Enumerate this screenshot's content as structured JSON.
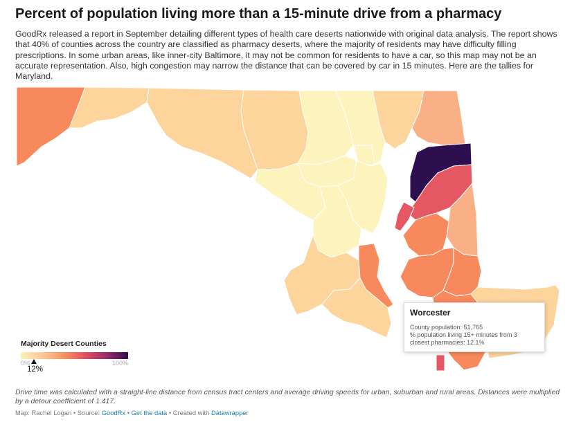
{
  "header": {
    "title": "Percent of population living more than a 15-minute drive from a pharmacy",
    "description": "GoodRx released a report in September detailing different types of health care deserts nationwide with original data analysis. The report shows that 40% of counties across the country are classified as pharmacy deserts, where the majority of residents may have difficulty filling prescriptions. In some urban areas, like inner-city Baltimore, it may not be common for residents to have a car, so this map may not be an accurate representation. Also, high congestion may narrow the distance that can be covered by car in 15 minutes. Here are the tallies for Maryland."
  },
  "colors": {
    "scale": [
      "#fbf1b6",
      "#fcc89a",
      "#f8925f",
      "#e44e5e",
      "#9a2a6c",
      "#2d0f4f"
    ],
    "county_pale": "#fdf3bd",
    "county_light": "#fcd49c",
    "county_mid": "#fab086",
    "county_orange": "#f8895c",
    "county_red": "#e45763",
    "county_darkest": "#2d0f4f",
    "link": "#1d81a2"
  },
  "legend": {
    "title": "Majority Desert Counties",
    "min_label": "0%",
    "max_label": "100%",
    "hover_value_label": "12%",
    "hover_value": 12.1
  },
  "tooltip": {
    "county": "Worcester",
    "population_line": "County population: 51,765",
    "pct_line_1": "% population living 15+ minutes from 3",
    "pct_line_2": "closest pharmacies: 12.1%"
  },
  "notes": "Drive time was calculated with a straight-line distance from census tract centers and average driving speeds for urban, suburban and rural areas. Distances were multiplied by a detour coefficient of 1.417.",
  "credits": {
    "prefix": "Map: Rachel Logan • Source: ",
    "source_link": "GoodRx",
    "sep1": " • ",
    "data_link": "Get the data",
    "sep2": " • Created with ",
    "tool_link": "Datawrapper"
  }
}
